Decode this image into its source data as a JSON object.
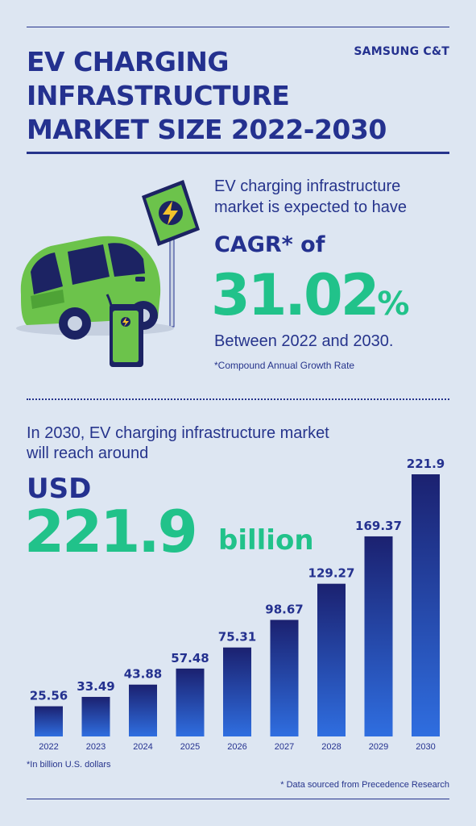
{
  "header": {
    "title_lines": [
      "EV CHARGING",
      "INFRASTRUCTURE",
      "MARKET SIZE 2022-2030"
    ],
    "brand": "SAMSUNG C&T"
  },
  "cagr_section": {
    "intro_line1": "EV charging infrastructure",
    "intro_line2": "market is expected to have",
    "cagr_label": "CAGR* of",
    "cagr_number": "31.02",
    "cagr_percent": "%",
    "period": "Between 2022 and 2030.",
    "footnote": "*Compound Annual Growth Rate"
  },
  "market_section": {
    "reach_line1": "In 2030, EV charging infrastructure market",
    "reach_line2": "will reach around",
    "currency": "USD",
    "amount": "221.9",
    "unit": "billion",
    "footnote": "*In billion U.S. dollars",
    "source": "* Data sourced from Precedence Research"
  },
  "colors": {
    "navy": "#24318f",
    "green": "#21c28a",
    "background": "#dde6f2",
    "bar_top": "#1b2170",
    "bar_bottom": "#2f6ee0"
  },
  "illustration": {
    "subject": "green electric car charging at station",
    "icon": "lightning-bolt-icon"
  },
  "chart_data": {
    "type": "bar",
    "categories": [
      "2022",
      "2023",
      "2024",
      "2025",
      "2026",
      "2027",
      "2028",
      "2029",
      "2030"
    ],
    "values": [
      25.56,
      33.49,
      43.88,
      57.48,
      75.31,
      98.67,
      129.27,
      169.37,
      221.9
    ],
    "value_labels": [
      "25.56",
      "33.49",
      "43.88",
      "57.48",
      "75.31",
      "98.67",
      "129.27",
      "169.37",
      "221.9"
    ],
    "ylim": [
      0,
      221.9
    ],
    "grid": false,
    "legend": "none"
  }
}
